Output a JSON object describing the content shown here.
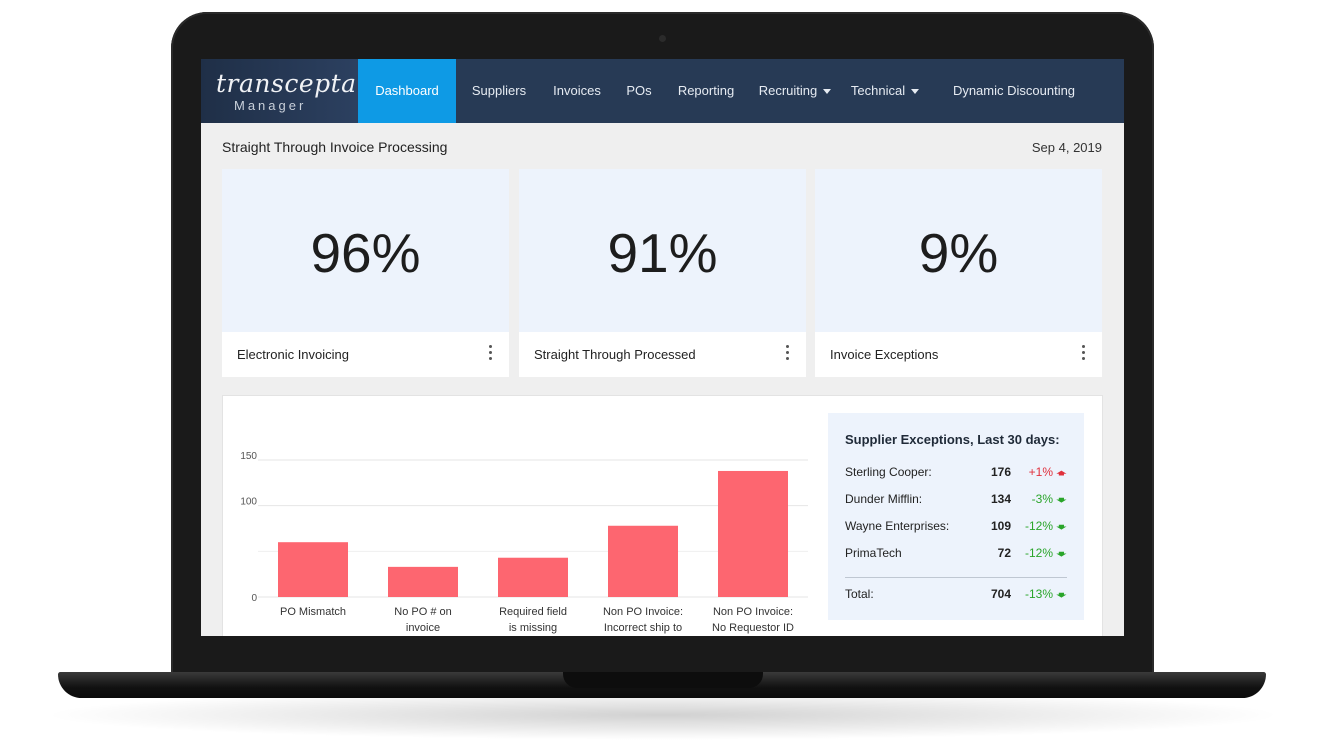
{
  "brand": {
    "name": "transcepta",
    "sub": "Manager"
  },
  "nav": [
    {
      "label": "Dashboard",
      "active": true
    },
    {
      "label": "Suppliers"
    },
    {
      "label": "Invoices"
    },
    {
      "label": "POs"
    },
    {
      "label": "Reporting"
    },
    {
      "label": "Recruiting",
      "dropdown": true
    },
    {
      "label": "Technical",
      "dropdown": true
    },
    {
      "label": "Dynamic Discounting"
    }
  ],
  "header": {
    "title": "Straight Through Invoice Processing",
    "date": "Sep 4, 2019"
  },
  "cards": [
    {
      "value": "96%",
      "label": "Electronic Invoicing"
    },
    {
      "value": "91%",
      "label": "Straight Through Processed"
    },
    {
      "value": "9%",
      "label": "Invoice Exceptions"
    }
  ],
  "chart_data": {
    "type": "bar",
    "categories": [
      [
        "PO Mismatch"
      ],
      [
        "No PO # on",
        "invoice"
      ],
      [
        "Required field",
        "is missing"
      ],
      [
        "Non PO Invoice:",
        "Incorrect ship to"
      ],
      [
        "Non PO Invoice:",
        "No Requestor ID"
      ]
    ],
    "values": [
      60,
      33,
      43,
      78,
      138
    ],
    "yticks": [
      0,
      100,
      150
    ],
    "ylim": [
      0,
      150
    ],
    "color": "#fd6670"
  },
  "exceptions": {
    "title": "Supplier Exceptions, Last 30 days:",
    "rows": [
      {
        "name": "Sterling Cooper:",
        "count": "176",
        "change": "+1%",
        "dir": "up"
      },
      {
        "name": "Dunder Mifflin:",
        "count": "134",
        "change": "-3%",
        "dir": "down"
      },
      {
        "name": "Wayne Enterprises:",
        "count": "109",
        "change": "-12%",
        "dir": "down"
      },
      {
        "name": "PrimaTech",
        "count": "72",
        "change": "-12%",
        "dir": "down"
      }
    ],
    "total": {
      "name": "Total:",
      "count": "704",
      "change": "-13%",
      "dir": "down"
    }
  },
  "colors": {
    "nav_bg": "#273a55",
    "active": "#0e9ae5",
    "up": "#e0303c",
    "down": "#2aa52a"
  },
  "icons": {
    "more": "kebab-menu-icon",
    "up": "arrow-up-icon",
    "down": "arrow-down-icon",
    "dropdown": "caret-down-icon"
  }
}
